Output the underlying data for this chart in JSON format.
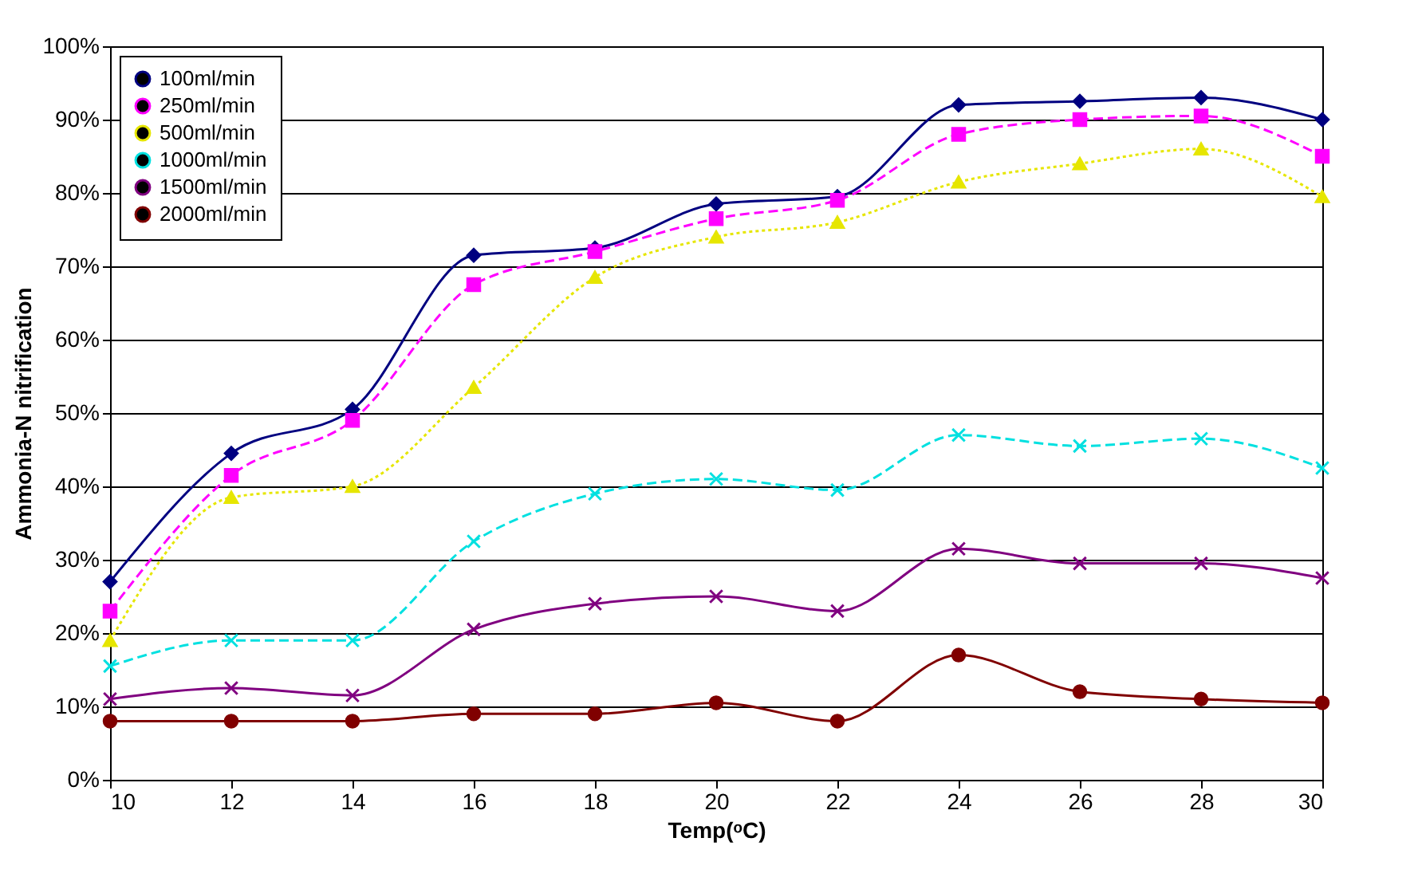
{
  "chart_data": {
    "type": "line",
    "xlabel": "Temp(ᵒC)",
    "ylabel": "Ammonia-N nitrification",
    "x": [
      10,
      12,
      14,
      16,
      18,
      20,
      22,
      24,
      26,
      28,
      30
    ],
    "xlim": [
      10,
      30
    ],
    "xticks": [
      10,
      12,
      14,
      16,
      18,
      20,
      22,
      24,
      26,
      28,
      30
    ],
    "ylim": [
      0,
      100
    ],
    "yticks": [
      {
        "value": 0,
        "label": "0%"
      },
      {
        "value": 10,
        "label": "10%"
      },
      {
        "value": 20,
        "label": "20%"
      },
      {
        "value": 30,
        "label": "30%"
      },
      {
        "value": 40,
        "label": "40%"
      },
      {
        "value": 50,
        "label": "50%"
      },
      {
        "value": 60,
        "label": "60%"
      },
      {
        "value": 70,
        "label": "70%"
      },
      {
        "value": 80,
        "label": "80%"
      },
      {
        "value": 90,
        "label": "90%"
      },
      {
        "value": 100,
        "label": "100%"
      }
    ],
    "grid": "y",
    "legend": "top left",
    "series": [
      {
        "name": "100ml/min",
        "color": "#000080",
        "marker": "diamond",
        "line_style": "solid",
        "values": [
          27,
          44.5,
          50.5,
          71.5,
          72.5,
          78.5,
          79.5,
          92,
          92.5,
          93,
          90
        ]
      },
      {
        "name": "250ml/min",
        "color": "#ff00ff",
        "marker": "square",
        "line_style": "dashed",
        "values": [
          23,
          41.5,
          49,
          67.5,
          72,
          76.5,
          79,
          88,
          90,
          90.5,
          85
        ]
      },
      {
        "name": "500ml/min",
        "color": "#e6e600",
        "marker": "triangle",
        "line_style": "dotted",
        "values": [
          19,
          38.5,
          40,
          53.5,
          68.5,
          74,
          76,
          81.5,
          84,
          86,
          79.5
        ]
      },
      {
        "name": "1000ml/min",
        "color": "#00e0e0",
        "marker": "cross",
        "line_style": "dashed",
        "values": [
          15.5,
          19,
          19,
          32.5,
          39,
          41,
          39.5,
          47,
          45.5,
          46.5,
          42.5
        ]
      },
      {
        "name": "1500ml/min",
        "color": "#800080",
        "marker": "cross",
        "line_style": "solid",
        "values": [
          11,
          12.5,
          11.5,
          20.5,
          24,
          25,
          23,
          31.5,
          29.5,
          29.5,
          27.5
        ]
      },
      {
        "name": "2000ml/min",
        "color": "#800000",
        "marker": "circle",
        "line_style": "solid",
        "values": [
          8,
          8,
          8,
          9,
          9,
          10.5,
          8,
          17,
          12,
          11,
          10.5
        ]
      }
    ]
  }
}
